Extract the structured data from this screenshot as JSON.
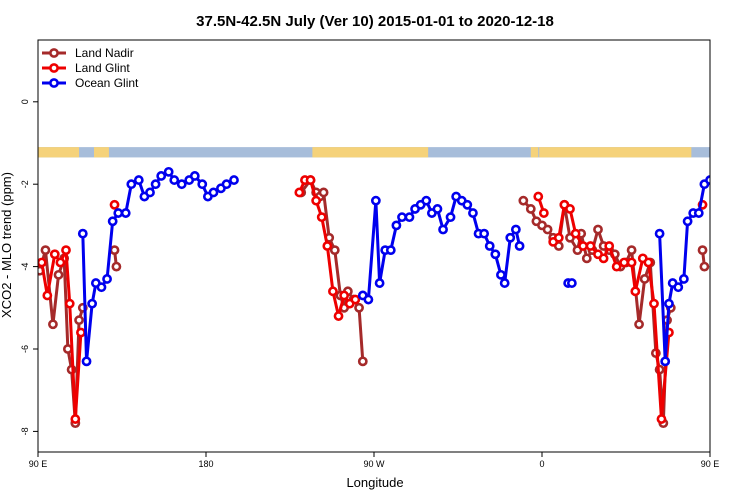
{
  "chart_data": {
    "type": "line",
    "title": "37.5N-42.5N July (Ver 10)   2015-01-01 to 2020-12-18",
    "xlabel": "Longitude",
    "ylabel": "XCO2 - MLO trend (ppm)",
    "xlim": [
      90,
      450
    ],
    "ylim": [
      -8.5,
      1.5
    ],
    "x_ticks": [
      {
        "value": 90,
        "label": "90 E"
      },
      {
        "value": 180,
        "label": "180"
      },
      {
        "value": 270,
        "label": "90 W"
      },
      {
        "value": 360,
        "label": "0"
      },
      {
        "value": 450,
        "label": "90 E"
      },
      {
        "value": 540,
        "label": "180"
      }
    ],
    "y_ticks": [
      {
        "value": 0,
        "label": "0"
      },
      {
        "value": -2,
        "label": "-2"
      },
      {
        "value": -4,
        "label": "-4"
      },
      {
        "value": -6,
        "label": "-6"
      },
      {
        "value": -8,
        "label": "-8"
      }
    ],
    "grid": false,
    "legend_position": "top-left",
    "land_ocean_strip": {
      "y_range": [
        -1.35,
        -1.1
      ],
      "land_color": "#f5d27a",
      "ocean_color": "#a7bdda"
    },
    "series": [
      {
        "name": "Land Nadir",
        "color": "#a52a2a",
        "segments": [
          [
            [
              91,
              -4.1
            ],
            [
              94,
              -3.6
            ],
            [
              98,
              -5.4
            ],
            [
              101,
              -4.2
            ],
            [
              104,
              -3.8
            ],
            [
              106,
              -6.0
            ],
            [
              108,
              -6.5
            ],
            [
              110,
              -7.8
            ],
            [
              112,
              -5.3
            ],
            [
              114,
              -5.0
            ]
          ],
          [
            [
              131,
              -3.6
            ],
            [
              132,
              -4.0
            ]
          ],
          [
            [
              231,
              -2.2
            ],
            [
              236,
              -1.9
            ],
            [
              239,
              -2.2
            ],
            [
              241,
              -2.3
            ],
            [
              243,
              -2.2
            ],
            [
              246,
              -3.3
            ],
            [
              249,
              -3.6
            ],
            [
              252,
              -4.7
            ],
            [
              254,
              -5.0
            ],
            [
              256,
              -4.6
            ],
            [
              259,
              -4.8
            ],
            [
              262,
              -5.0
            ],
            [
              264,
              -6.3
            ]
          ],
          [
            [
              350,
              -2.4
            ],
            [
              354,
              -2.6
            ],
            [
              357,
              -2.9
            ],
            [
              360,
              -3.0
            ],
            [
              363,
              -3.1
            ],
            [
              366,
              -3.3
            ],
            [
              369,
              -3.5
            ],
            [
              372,
              -2.5
            ],
            [
              375,
              -3.3
            ],
            [
              379,
              -3.6
            ],
            [
              381,
              -3.2
            ],
            [
              384,
              -3.8
            ],
            [
              387,
              -3.6
            ],
            [
              390,
              -3.1
            ],
            [
              393,
              -3.5
            ],
            [
              396,
              -3.6
            ],
            [
              399,
              -3.7
            ],
            [
              402,
              -4.0
            ],
            [
              405,
              -3.9
            ],
            [
              408,
              -3.6
            ],
            [
              412,
              -5.4
            ],
            [
              415,
              -4.3
            ],
            [
              418,
              -3.9
            ],
            [
              421,
              -6.1
            ],
            [
              423,
              -6.5
            ],
            [
              425,
              -7.8
            ],
            [
              427,
              -5.3
            ],
            [
              429,
              -5.0
            ]
          ],
          [
            [
              446,
              -3.6
            ],
            [
              447,
              -4.0
            ]
          ]
        ]
      },
      {
        "name": "Land Glint",
        "color": "#ee0000",
        "segments": [
          [
            [
              92,
              -3.9
            ],
            [
              95,
              -4.7
            ],
            [
              99,
              -3.7
            ],
            [
              102,
              -3.9
            ],
            [
              105,
              -3.6
            ],
            [
              107,
              -4.9
            ],
            [
              110,
              -7.7
            ],
            [
              113,
              -5.6
            ]
          ],
          [
            [
              131,
              -2.5
            ]
          ],
          [
            [
              230,
              -2.2
            ],
            [
              233,
              -1.9
            ],
            [
              236,
              -1.9
            ],
            [
              239,
              -2.4
            ],
            [
              242,
              -2.8
            ],
            [
              245,
              -3.5
            ],
            [
              248,
              -4.6
            ],
            [
              251,
              -5.2
            ],
            [
              254,
              -4.7
            ],
            [
              257,
              -4.9
            ],
            [
              260,
              -4.8
            ]
          ],
          [
            [
              358,
              -2.3
            ],
            [
              361,
              -2.7
            ]
          ],
          [
            [
              366,
              -3.4
            ],
            [
              369,
              -3.3
            ],
            [
              372,
              -2.5
            ],
            [
              375,
              -2.6
            ],
            [
              378,
              -3.2
            ],
            [
              382,
              -3.5
            ],
            [
              386,
              -3.5
            ],
            [
              390,
              -3.7
            ],
            [
              393,
              -3.8
            ],
            [
              396,
              -3.5
            ],
            [
              400,
              -4.0
            ],
            [
              404,
              -3.9
            ],
            [
              408,
              -3.9
            ],
            [
              410,
              -4.6
            ],
            [
              414,
              -3.8
            ],
            [
              417,
              -3.9
            ],
            [
              420,
              -4.9
            ],
            [
              424,
              -7.7
            ],
            [
              428,
              -5.6
            ]
          ],
          [
            [
              446,
              -2.5
            ]
          ]
        ]
      },
      {
        "name": "Ocean Glint",
        "color": "#0000ee",
        "segments": [
          [
            [
              114,
              -3.2
            ],
            [
              116,
              -6.3
            ],
            [
              119,
              -4.9
            ],
            [
              121,
              -4.4
            ],
            [
              124,
              -4.5
            ],
            [
              127,
              -4.3
            ],
            [
              130,
              -2.9
            ],
            [
              133,
              -2.7
            ],
            [
              137,
              -2.7
            ],
            [
              140,
              -2.0
            ],
            [
              144,
              -1.9
            ],
            [
              147,
              -2.3
            ],
            [
              150,
              -2.2
            ],
            [
              153,
              -2.0
            ],
            [
              156,
              -1.8
            ],
            [
              160,
              -1.7
            ],
            [
              163,
              -1.9
            ],
            [
              167,
              -2.0
            ],
            [
              171,
              -1.9
            ],
            [
              174,
              -1.8
            ],
            [
              178,
              -2.0
            ],
            [
              181,
              -2.3
            ],
            [
              184,
              -2.2
            ],
            [
              188,
              -2.1
            ],
            [
              191,
              -2.0
            ],
            [
              195,
              -1.9
            ]
          ],
          [
            [
              264,
              -4.7
            ],
            [
              267,
              -4.8
            ],
            [
              271,
              -2.4
            ],
            [
              273,
              -4.4
            ],
            [
              276,
              -3.6
            ],
            [
              279,
              -3.6
            ],
            [
              282,
              -3.0
            ],
            [
              285,
              -2.8
            ],
            [
              289,
              -2.8
            ],
            [
              292,
              -2.6
            ],
            [
              295,
              -2.5
            ],
            [
              298,
              -2.4
            ],
            [
              301,
              -2.7
            ],
            [
              304,
              -2.6
            ],
            [
              307,
              -3.1
            ],
            [
              311,
              -2.8
            ],
            [
              314,
              -2.3
            ],
            [
              317,
              -2.4
            ],
            [
              320,
              -2.5
            ],
            [
              323,
              -2.7
            ],
            [
              326,
              -3.2
            ],
            [
              329,
              -3.2
            ],
            [
              332,
              -3.5
            ],
            [
              335,
              -3.7
            ],
            [
              338,
              -4.2
            ],
            [
              340,
              -4.4
            ],
            [
              343,
              -3.3
            ],
            [
              346,
              -3.1
            ],
            [
              348,
              -3.5
            ]
          ],
          [
            [
              374,
              -4.4
            ],
            [
              376,
              -4.4
            ]
          ],
          [
            [
              423,
              -3.2
            ],
            [
              426,
              -6.3
            ],
            [
              428,
              -4.9
            ],
            [
              430,
              -4.4
            ],
            [
              433,
              -4.5
            ],
            [
              436,
              -4.3
            ],
            [
              438,
              -2.9
            ],
            [
              441,
              -2.7
            ],
            [
              444,
              -2.7
            ],
            [
              447,
              -2.0
            ],
            [
              450,
              -1.9
            ],
            [
              453,
              -2.3
            ],
            [
              456,
              -2.2
            ]
          ]
        ]
      }
    ]
  }
}
